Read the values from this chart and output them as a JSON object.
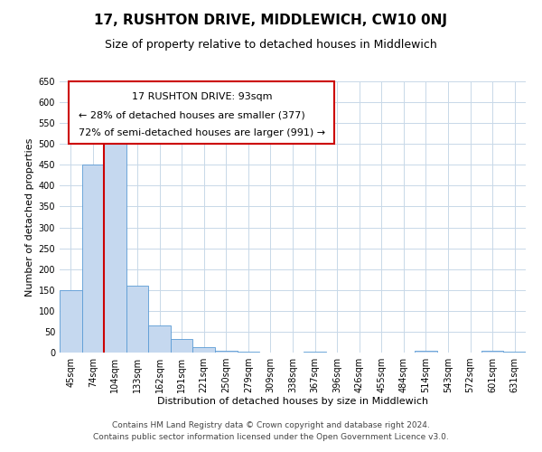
{
  "title": "17, RUSHTON DRIVE, MIDDLEWICH, CW10 0NJ",
  "subtitle": "Size of property relative to detached houses in Middlewich",
  "xlabel": "Distribution of detached houses by size in Middlewich",
  "ylabel": "Number of detached properties",
  "footer_line1": "Contains HM Land Registry data © Crown copyright and database right 2024.",
  "footer_line2": "Contains public sector information licensed under the Open Government Licence v3.0.",
  "bar_labels": [
    "45sqm",
    "74sqm",
    "104sqm",
    "133sqm",
    "162sqm",
    "191sqm",
    "221sqm",
    "250sqm",
    "279sqm",
    "309sqm",
    "338sqm",
    "367sqm",
    "396sqm",
    "426sqm",
    "455sqm",
    "484sqm",
    "514sqm",
    "543sqm",
    "572sqm",
    "601sqm",
    "631sqm"
  ],
  "bar_values": [
    150,
    450,
    510,
    160,
    65,
    32,
    12,
    5,
    2,
    0,
    0,
    2,
    0,
    0,
    0,
    0,
    5,
    0,
    0,
    5,
    2
  ],
  "bar_color": "#c5d8ef",
  "bar_edge_color": "#5b9bd5",
  "ylim": [
    0,
    650
  ],
  "yticks": [
    0,
    50,
    100,
    150,
    200,
    250,
    300,
    350,
    400,
    450,
    500,
    550,
    600,
    650
  ],
  "vline_x_index": 2,
  "vline_color": "#cc0000",
  "annotation_title": "17 RUSHTON DRIVE: 93sqm",
  "annotation_line1": "← 28% of detached houses are smaller (377)",
  "annotation_line2": "72% of semi-detached houses are larger (991) →",
  "annotation_box_color": "#cc0000",
  "bg_color": "#ffffff",
  "grid_color": "#c8d8e8",
  "title_fontsize": 11,
  "subtitle_fontsize": 9,
  "axis_label_fontsize": 8,
  "tick_fontsize": 7,
  "annotation_fontsize": 8,
  "footer_fontsize": 6.5
}
